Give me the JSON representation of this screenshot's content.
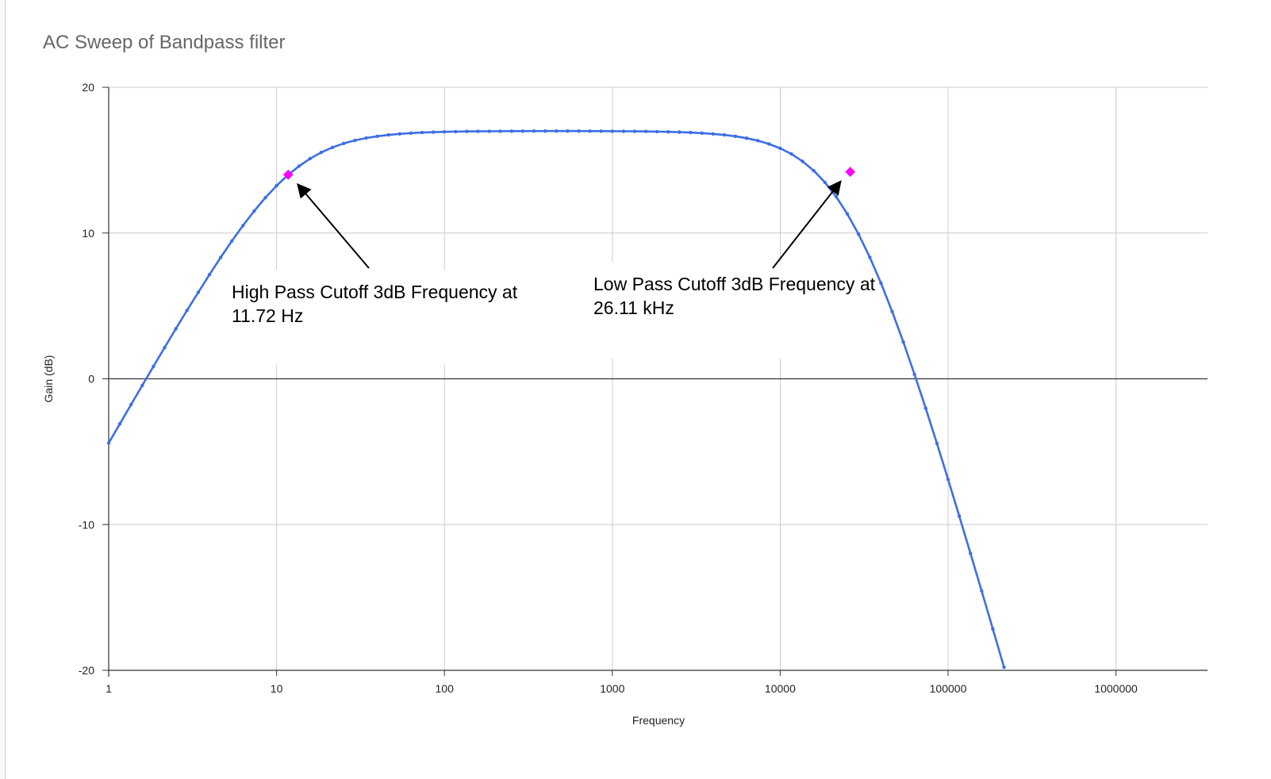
{
  "chart_data": {
    "type": "line",
    "title": "AC Sweep of Bandpass filter",
    "xlabel": "Frequency",
    "ylabel": "Gain (dB)",
    "x_scale": "log",
    "xlim": [
      1,
      3000000
    ],
    "ylim": [
      -20,
      20
    ],
    "x_ticks": [
      "1",
      "10",
      "100",
      "1000",
      "10000",
      "100000",
      "1000000"
    ],
    "y_ticks": [
      "20",
      "10",
      "0",
      "-10",
      "-20"
    ],
    "grid": true,
    "legend": "none",
    "series": [
      {
        "color": "#3d6ee6",
        "points_per_decade": 15,
        "x_range": [
          1,
          1900000
        ],
        "curve": {
          "passband_gain_db": 17.0,
          "high_pass_cutoff_hz": 11.72,
          "low_pass_cutoff_hz": 26110
        }
      }
    ],
    "highlight_points": [
      {
        "x": 11.72,
        "y": 14.0,
        "color": "#ff00ff"
      },
      {
        "x": 26110,
        "y": 14.2,
        "color": "#ff00ff"
      }
    ],
    "annotations": [
      {
        "lines": [
          "High Pass Cutoff 3dB Frequency at",
          "11.72 Hz"
        ],
        "target": {
          "x": 11.72,
          "y": 14.0
        }
      },
      {
        "lines": [
          "Low Pass Cutoff 3dB Frequency at",
          "26.11 kHz"
        ],
        "target": {
          "x": 26110,
          "y": 14.2
        }
      }
    ]
  }
}
